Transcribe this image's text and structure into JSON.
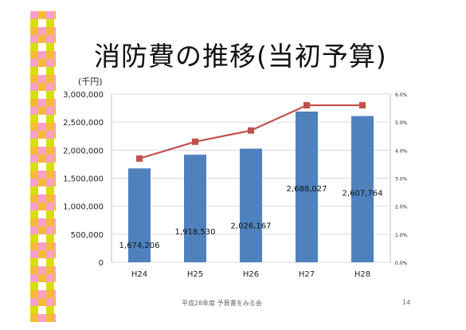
{
  "slide": {
    "title": "消防費の推移(当初予算)",
    "footer": "平成28年度 予算書をみる会",
    "page_number": "14"
  },
  "colors": {
    "bar": "#4f81bd",
    "line": "#c0504d",
    "grid": "#d9d9d9",
    "deco_pink": "#f7a1c9",
    "deco_yellow": "#d9df00",
    "deco_orange": "#f7ba36",
    "deco_white": "#ffffff"
  },
  "chart_data": {
    "type": "bar",
    "unit_label": "(千円)",
    "categories": [
      "H24",
      "H25",
      "H26",
      "H27",
      "H28"
    ],
    "series": [
      {
        "type": "bar",
        "axis": "left",
        "values": [
          1674206,
          1918530,
          2026167,
          2688027,
          2607764
        ],
        "labels": [
          "1,674,206",
          "1,918,530",
          "2,026,167",
          "2,688,027",
          "2,607,764"
        ]
      },
      {
        "type": "line",
        "axis": "right",
        "values": [
          3.7,
          4.3,
          4.7,
          5.6,
          5.6
        ]
      }
    ],
    "left_axis": {
      "min": 0,
      "max": 3000000,
      "ticks": [
        "0",
        "500,000",
        "1,000,000",
        "1,500,000",
        "2,000,000",
        "2,500,000",
        "3,000,000"
      ]
    },
    "right_axis": {
      "min": 0,
      "max": 6,
      "ticks": [
        "0.0%",
        "1.0%",
        "2.0%",
        "3.0%",
        "4.0%",
        "5.0%",
        "6.0%"
      ]
    },
    "grid": true,
    "legend": "none"
  }
}
